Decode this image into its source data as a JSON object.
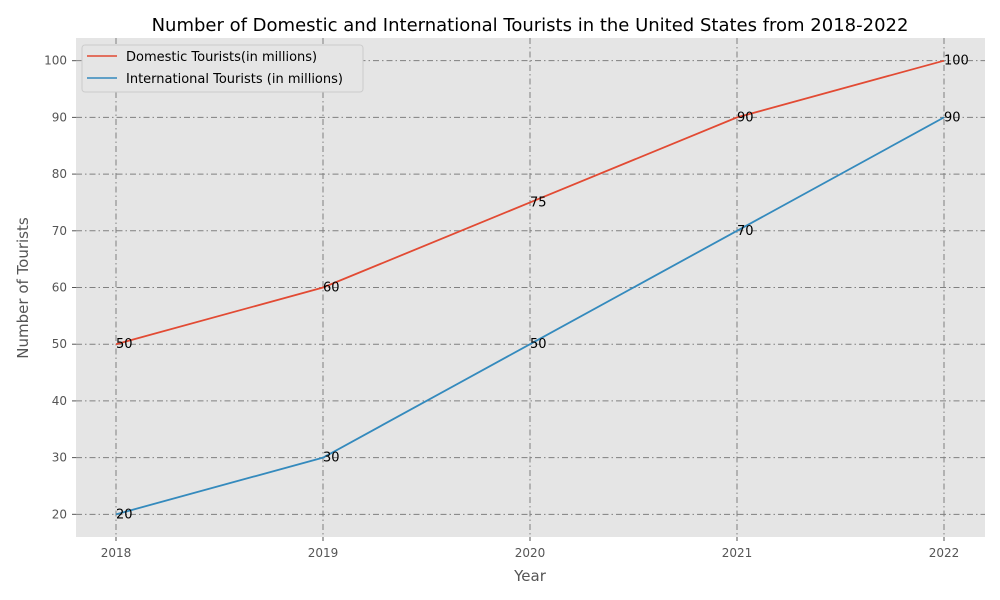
{
  "chart_data": {
    "type": "line",
    "title": "Number of Domestic and International Tourists in the United States from 2018-2022",
    "xlabel": "Year",
    "ylabel": "Number of Tourists",
    "categories": [
      "2018",
      "2019",
      "2020",
      "2021",
      "2022"
    ],
    "x_ticks": [
      "2018",
      "2019",
      "2020",
      "2021",
      "2022"
    ],
    "y_ticks": [
      "20",
      "30",
      "40",
      "50",
      "60",
      "70",
      "80",
      "90",
      "100"
    ],
    "ylim": [
      16.0,
      104.0
    ],
    "grid": true,
    "legend_position": "top-left",
    "series": [
      {
        "name": "Domestic Tourists(in millions)",
        "color": "#E24A33",
        "values": [
          50,
          60,
          75,
          90,
          100
        ],
        "labels": [
          "50",
          "60",
          "75",
          "90",
          "100"
        ]
      },
      {
        "name": "International Tourists (in millions)",
        "color": "#348ABD",
        "values": [
          20,
          30,
          50,
          70,
          90
        ],
        "labels": [
          "20",
          "30",
          "50",
          "70",
          "90"
        ]
      }
    ]
  }
}
